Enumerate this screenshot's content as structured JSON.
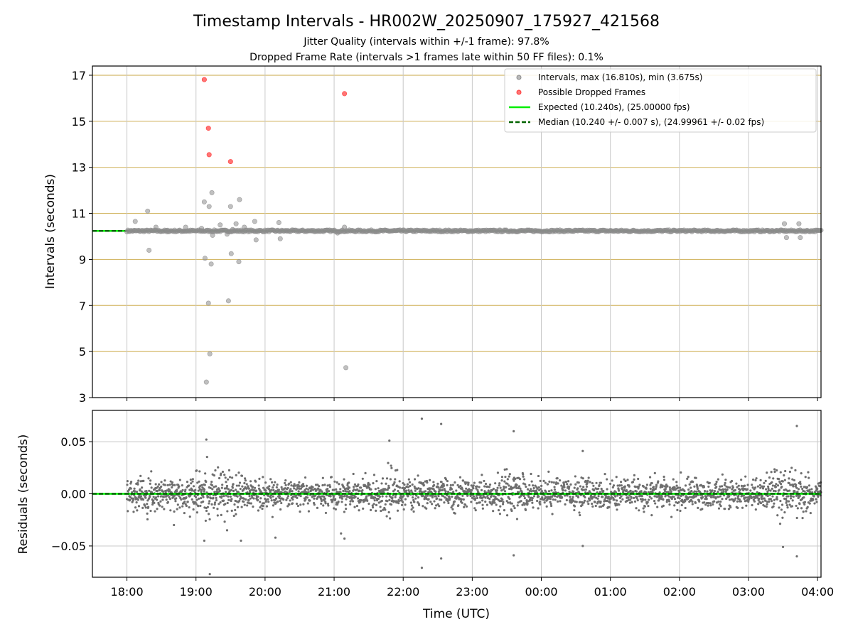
{
  "title": "Timestamp Intervals - HR002W_20250907_175927_421568",
  "subtitle_lines": [
    "Jitter Quality (intervals within +/-1 frame): 97.8%",
    "Dropped Frame Rate (intervals >1 frames late within 50 FF files): 0.1%"
  ],
  "colors": {
    "intervals": "#8c8c8c",
    "dropped": "#ff3b3b",
    "expected": "#00ee00",
    "median": "#006400",
    "hgrid_top": "#d4b96a",
    "grid": "#c8c8c8"
  },
  "legend": {
    "intervals": "Intervals, max (16.810s), min (3.675s)",
    "dropped": "Possible Dropped Frames",
    "expected": "Expected (10.240s), (25.00000 fps)",
    "median": "Median (10.240 +/- 0.007 s), (24.99961 +/- 0.02 fps)"
  },
  "chart_data": [
    {
      "type": "scatter",
      "name": "intervals",
      "ylabel": "Intervals (seconds)",
      "xlim_hours": [
        17.5,
        28.05
      ],
      "ylim": [
        3,
        17.4
      ],
      "yticks": [
        "3",
        "5",
        "7",
        "9",
        "11",
        "13",
        "15",
        "17"
      ],
      "expected": 10.24,
      "median": 10.24,
      "baseline_range_hours": [
        18.0,
        28.05
      ],
      "outliers": {
        "x_hours": [
          18.12,
          18.3,
          18.32,
          18.42,
          18.58,
          18.85,
          19.08,
          19.12,
          19.13,
          19.15,
          19.18,
          19.19,
          19.2,
          19.22,
          19.23,
          19.24,
          19.35,
          19.45,
          19.47,
          19.5,
          19.51,
          19.53,
          19.58,
          19.62,
          19.63,
          19.7,
          19.85,
          19.87,
          20.2,
          20.22,
          21.05,
          21.15,
          21.17,
          27.52,
          27.55,
          27.73,
          27.75
        ],
        "y": [
          10.65,
          11.1,
          9.4,
          10.4,
          10.2,
          10.4,
          10.35,
          11.5,
          9.05,
          3.675,
          7.1,
          11.3,
          4.9,
          8.8,
          11.9,
          10.05,
          10.5,
          10.1,
          7.2,
          11.3,
          9.25,
          10.3,
          10.55,
          8.9,
          11.6,
          10.4,
          10.65,
          9.85,
          10.6,
          9.9,
          10.15,
          10.4,
          4.3,
          10.55,
          9.95,
          10.55,
          9.95
        ]
      },
      "dropped_frames": {
        "x_hours": [
          19.12,
          19.18,
          19.19,
          19.5,
          21.15
        ],
        "y": [
          16.81,
          14.7,
          13.55,
          13.25,
          16.2
        ]
      }
    },
    {
      "type": "scatter",
      "name": "residuals",
      "xlabel": "Time (UTC)",
      "ylabel": "Residuals (seconds)",
      "xlim_hours": [
        17.5,
        28.05
      ],
      "ylim": [
        -0.08,
        0.08
      ],
      "yticks": [
        "−0.05",
        "0.00",
        "0.05"
      ],
      "ytick_values": [
        -0.05,
        0,
        0.05
      ],
      "xticks": [
        "18:00",
        "19:00",
        "20:00",
        "21:00",
        "22:00",
        "23:00",
        "00:00",
        "01:00",
        "02:00",
        "03:00",
        "04:00"
      ],
      "xtick_hours": [
        18,
        19,
        20,
        21,
        22,
        23,
        24,
        25,
        26,
        27,
        28
      ],
      "spread_sigma": 0.007,
      "sample_count": 2600,
      "notable_points": {
        "x_hours": [
          19.15,
          19.2,
          21.15,
          21.8,
          22.27,
          22.27,
          22.55,
          22.55,
          23.6,
          23.6,
          24.6,
          24.6,
          27.7,
          27.7,
          27.5,
          19.12,
          19.45,
          20.15,
          21.1
        ],
        "y": [
          0.052,
          -0.077,
          -0.043,
          0.051,
          0.072,
          -0.071,
          0.067,
          -0.062,
          0.06,
          -0.059,
          0.041,
          -0.05,
          0.065,
          -0.06,
          -0.051,
          -0.045,
          -0.035,
          -0.042,
          -0.038
        ]
      }
    }
  ]
}
